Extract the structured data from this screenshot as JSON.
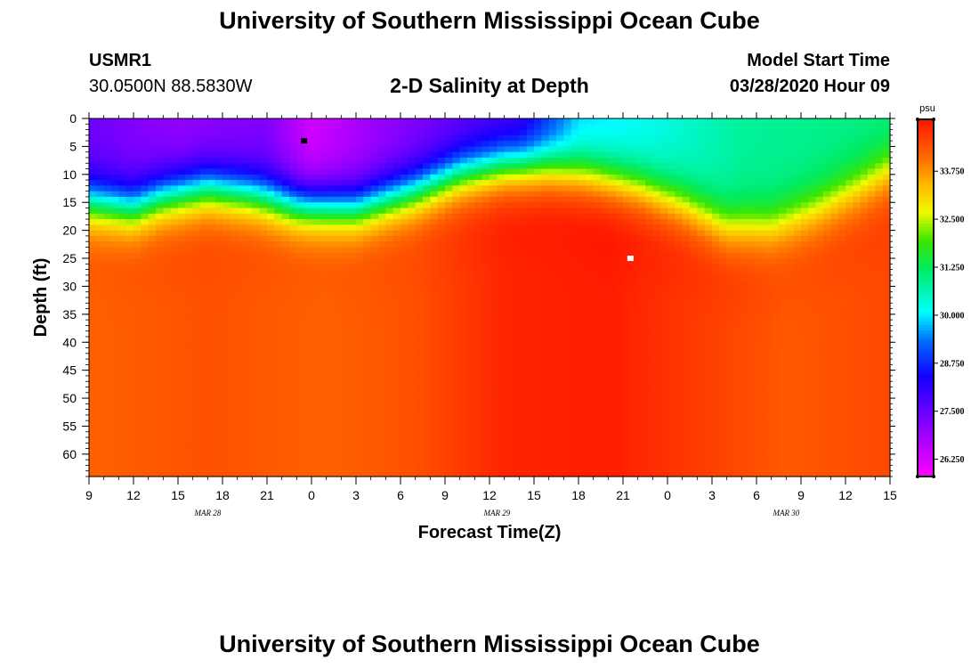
{
  "header": {
    "title": "University of Southern Mississippi Ocean Cube",
    "station_id": "USMR1",
    "station_coords": "30.0500N 88.5830W",
    "plot_title": "2-D Salinity at Depth",
    "model_start_label": "Model Start Time",
    "model_start_value": "03/28/2020 Hour 09"
  },
  "footer": {
    "title": "University of Southern Mississippi Ocean Cube"
  },
  "chart_data": {
    "type": "heatmap",
    "title": "2-D Salinity at Depth",
    "xlabel": "Forecast Time(Z)",
    "ylabel": "Depth (ft)",
    "x_range_hours": [
      0,
      54
    ],
    "ylim": [
      0,
      64
    ],
    "x_tick_labels": [
      "9",
      "12",
      "15",
      "18",
      "21",
      "0",
      "3",
      "6",
      "9",
      "12",
      "15",
      "18",
      "21",
      "0",
      "3",
      "6",
      "9",
      "12",
      "15"
    ],
    "date_labels": [
      {
        "label": "MAR 28",
        "hour": 8
      },
      {
        "label": "MAR 29",
        "hour": 27.5
      },
      {
        "label": "MAR 30",
        "hour": 47
      }
    ],
    "y_ticks": [
      0,
      5,
      10,
      15,
      20,
      25,
      30,
      35,
      40,
      45,
      50,
      55,
      60
    ],
    "colorbar": {
      "units": "psu",
      "min": 25.8,
      "max": 35.1,
      "tick_labels": [
        "33.750",
        "32.500",
        "31.250",
        "30.000",
        "28.750",
        "27.500",
        "26.250"
      ],
      "tick_values": [
        33.75,
        32.5,
        31.25,
        30.0,
        28.75,
        27.5,
        26.25
      ]
    },
    "markers": [
      {
        "name": "min-marker",
        "hour": 14.5,
        "depth": 4,
        "color": "#000000"
      },
      {
        "name": "max-marker",
        "hour": 36.5,
        "depth": 25,
        "color": "#ffffff"
      }
    ],
    "halocline_depth_ft": [
      {
        "hour": 0,
        "depth": 15
      },
      {
        "hour": 3,
        "depth": 16
      },
      {
        "hour": 5,
        "depth": 14
      },
      {
        "hour": 8,
        "depth": 12.5
      },
      {
        "hour": 11,
        "depth": 13.5
      },
      {
        "hour": 14,
        "depth": 15.5
      },
      {
        "hour": 18,
        "depth": 16
      },
      {
        "hour": 22,
        "depth": 13
      },
      {
        "hour": 25,
        "depth": 10
      },
      {
        "hour": 28,
        "depth": 8.5
      },
      {
        "hour": 31,
        "depth": 8.5
      },
      {
        "hour": 34,
        "depth": 10
      },
      {
        "hour": 37,
        "depth": 12
      },
      {
        "hour": 40,
        "depth": 15
      },
      {
        "hour": 43,
        "depth": 19
      },
      {
        "hour": 46,
        "depth": 19
      },
      {
        "hour": 49,
        "depth": 16
      },
      {
        "hour": 52,
        "depth": 12
      },
      {
        "hour": 54,
        "depth": 9
      }
    ],
    "surface_salinity_psu": [
      {
        "hour": 0,
        "value": 27.4
      },
      {
        "hour": 6,
        "value": 27.0
      },
      {
        "hour": 12,
        "value": 27.2
      },
      {
        "hour": 15,
        "value": 26.3
      },
      {
        "hour": 20,
        "value": 27.0
      },
      {
        "hour": 26,
        "value": 27.6
      },
      {
        "hour": 29,
        "value": 27.8
      },
      {
        "hour": 33,
        "value": 29.8
      },
      {
        "hour": 38,
        "value": 30.2
      },
      {
        "hour": 44,
        "value": 30.8
      },
      {
        "hour": 54,
        "value": 31.0
      }
    ],
    "deep_salinity_psu": [
      {
        "hour": 0,
        "value": 34.2
      },
      {
        "hour": 8,
        "value": 34.4
      },
      {
        "hour": 16,
        "value": 34.2
      },
      {
        "hour": 22,
        "value": 34.4
      },
      {
        "hour": 28,
        "value": 34.9
      },
      {
        "hour": 35,
        "value": 35.0
      },
      {
        "hour": 40,
        "value": 34.7
      },
      {
        "hour": 47,
        "value": 34.3
      },
      {
        "hour": 54,
        "value": 34.5
      }
    ]
  }
}
